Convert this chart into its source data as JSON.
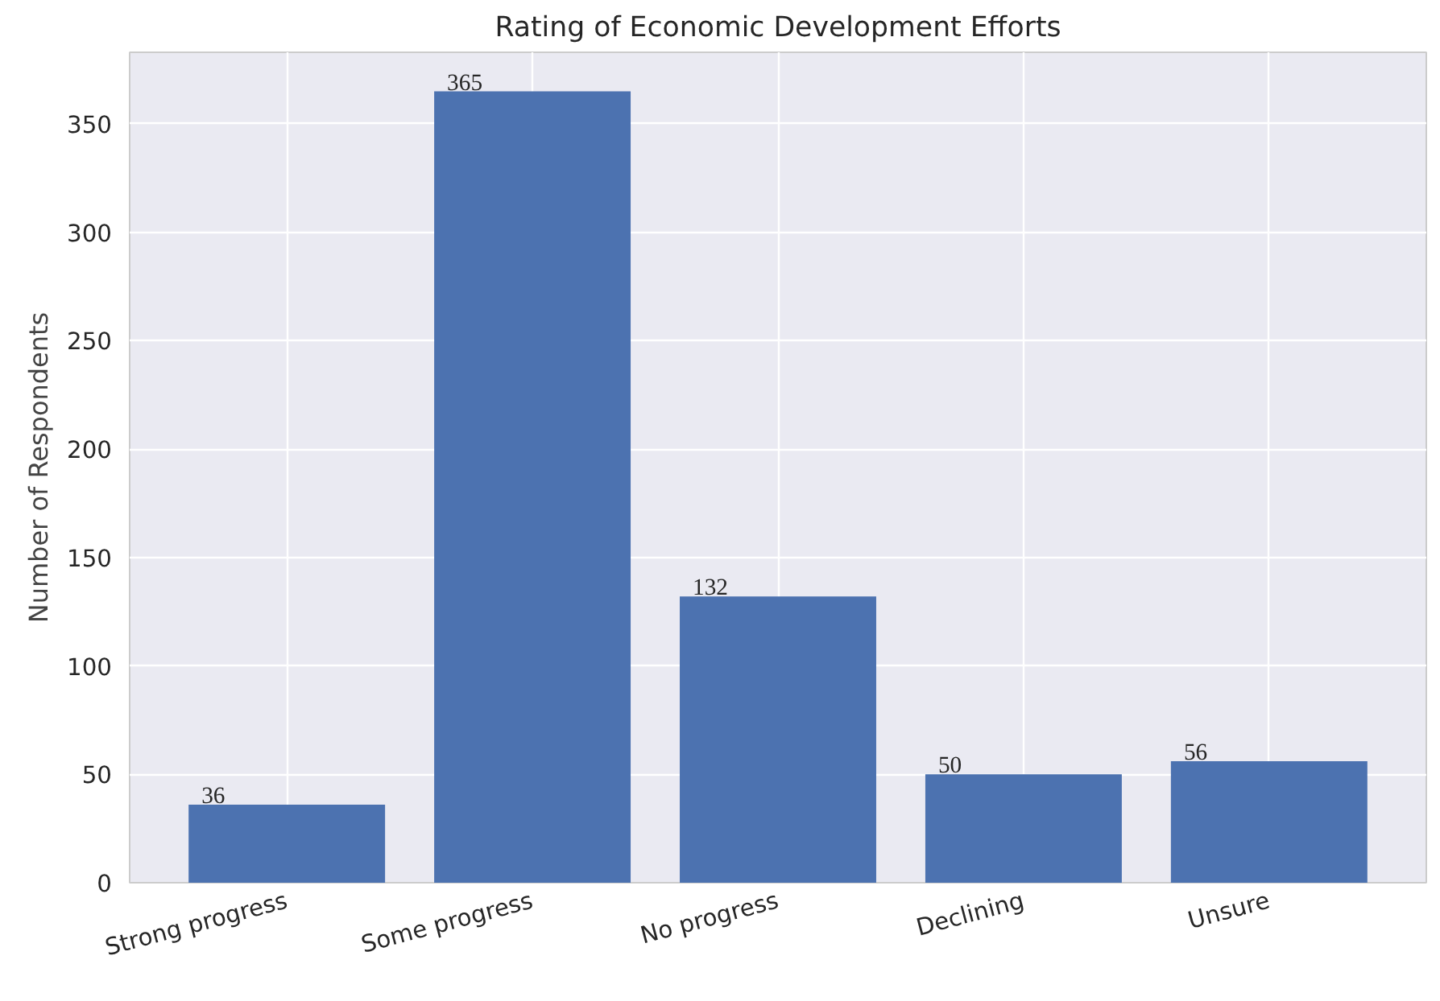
{
  "chart_data": {
    "type": "bar",
    "title": "Rating of Economic Development Efforts",
    "ylabel": "Number of Respondents",
    "categories": [
      "Strong progress",
      "Some progress",
      "No progress",
      "Declining",
      "Unsure"
    ],
    "values": [
      36,
      365,
      132,
      50,
      56
    ],
    "color": "#4c72b0",
    "ylim": [
      0,
      383
    ],
    "yticks": [
      0,
      50,
      100,
      150,
      200,
      250,
      300,
      350
    ],
    "grid": true,
    "data_labels": true
  }
}
